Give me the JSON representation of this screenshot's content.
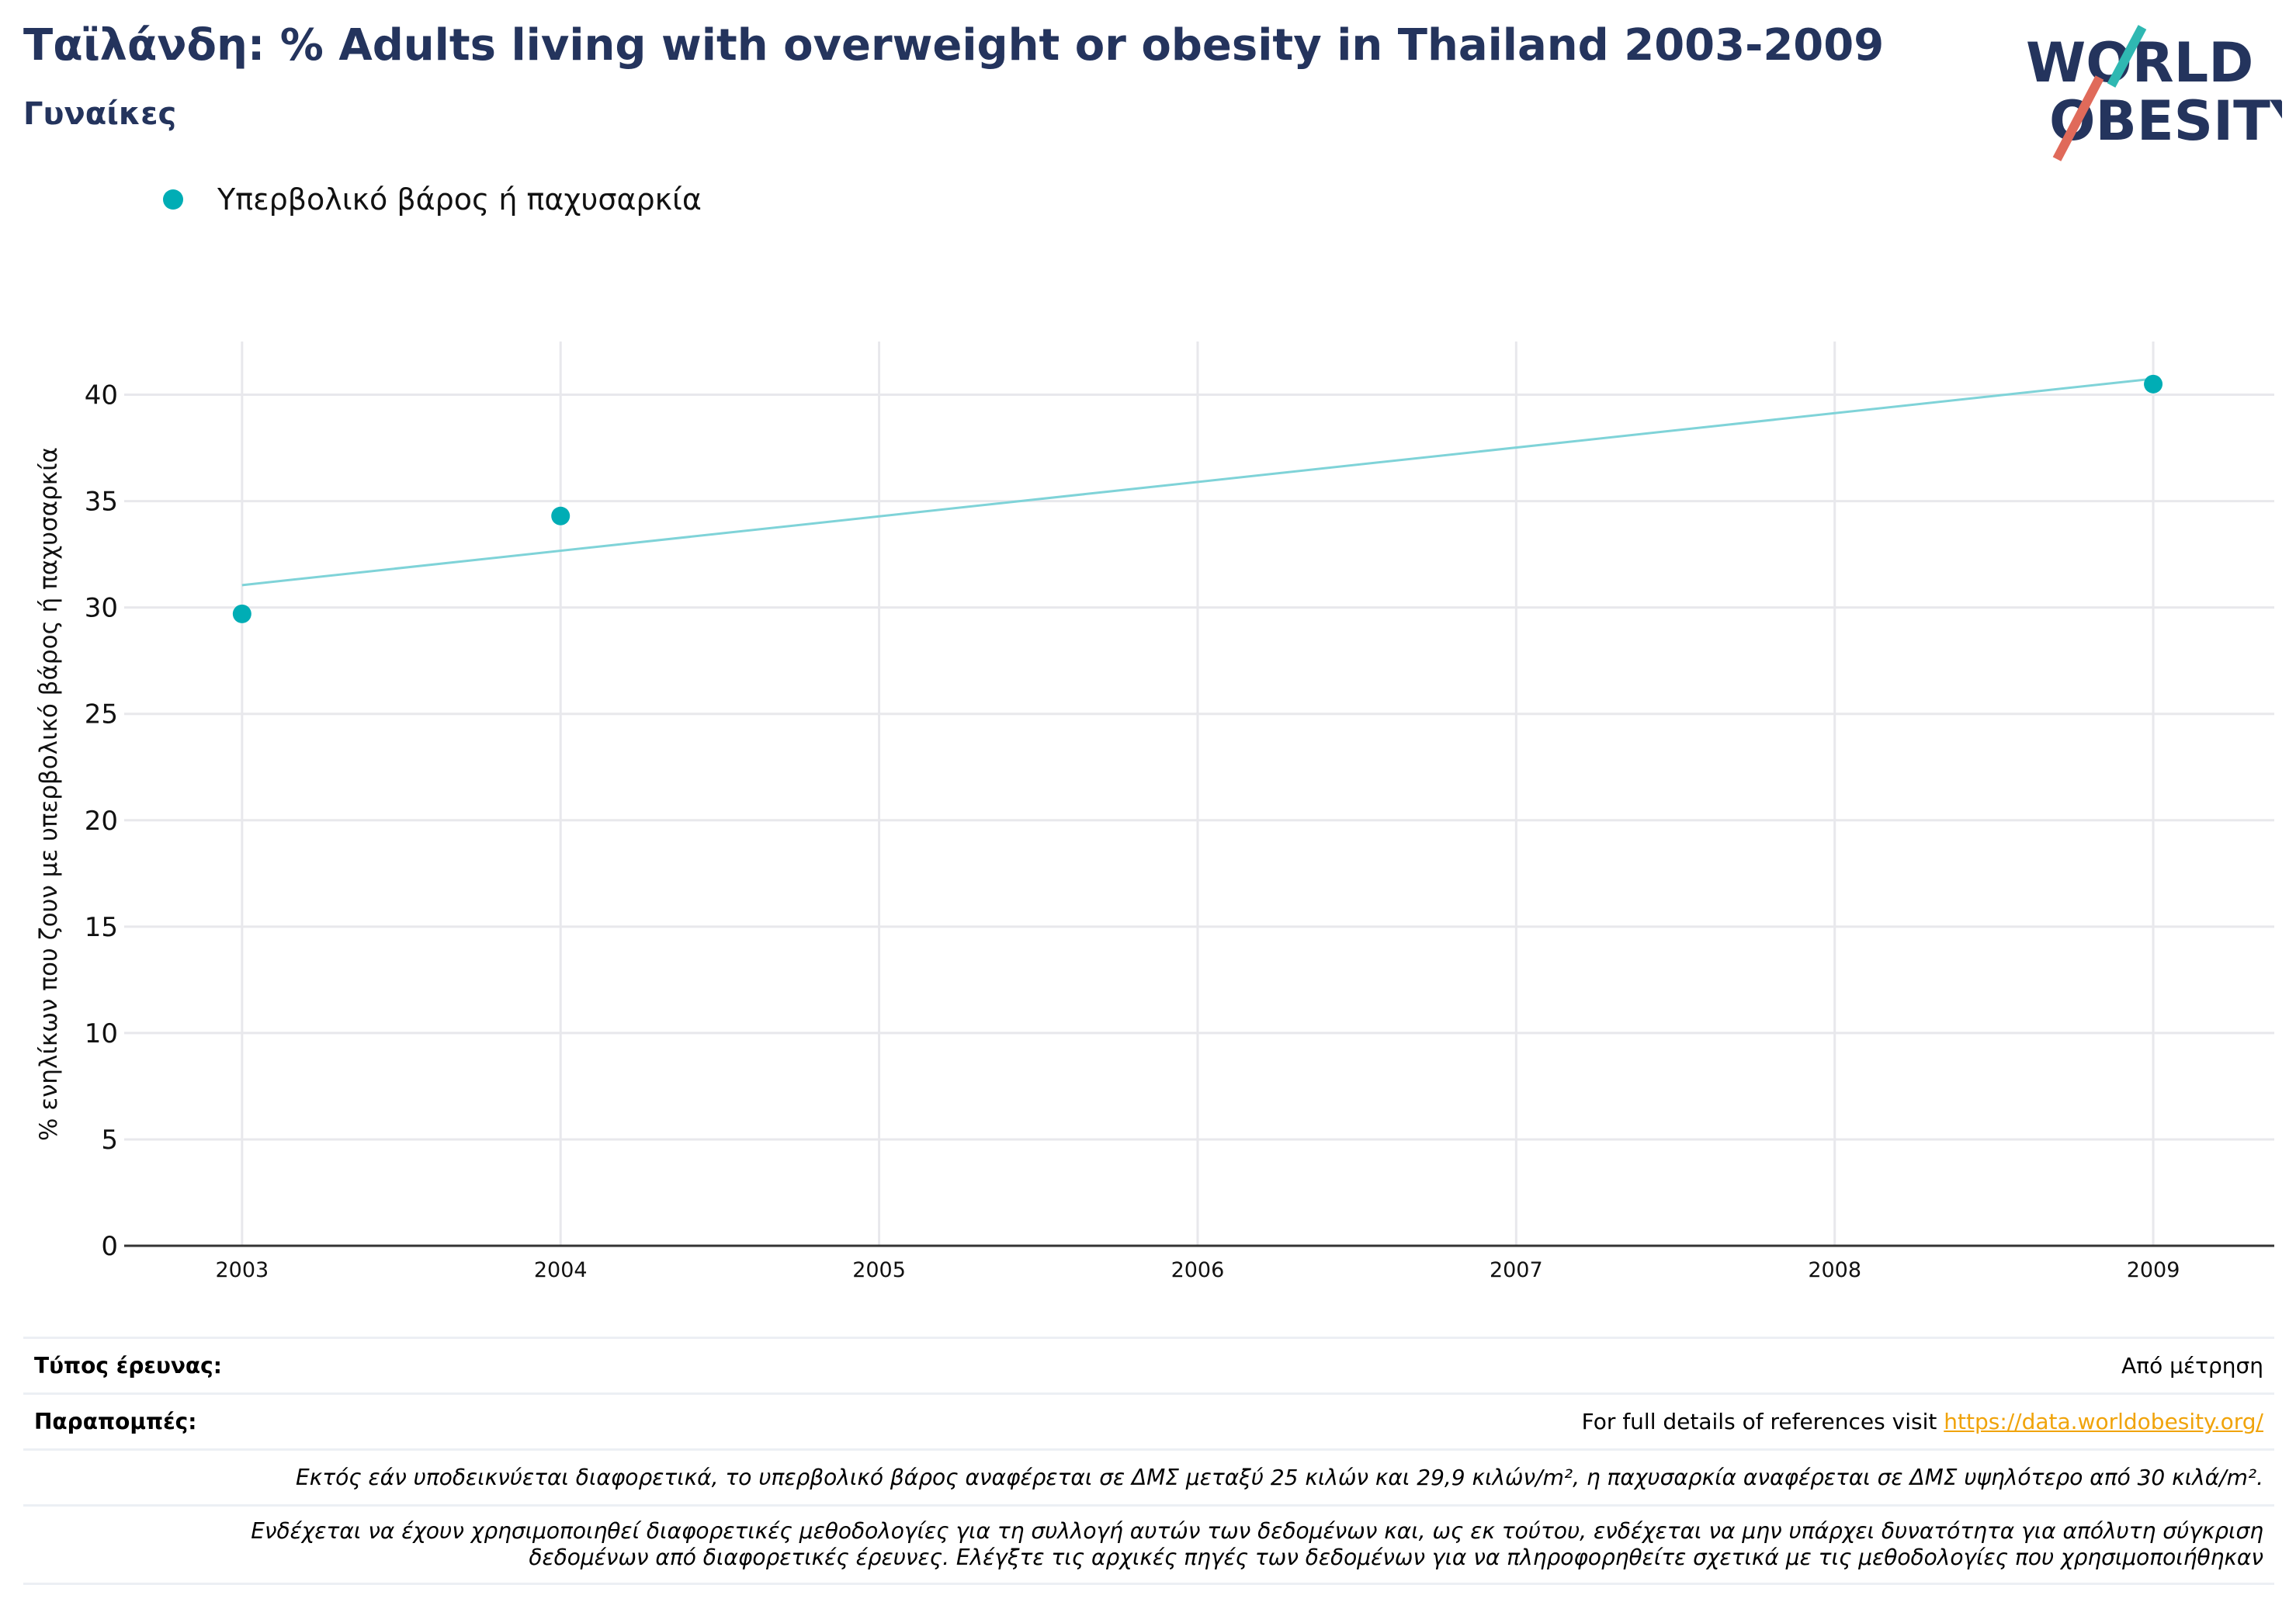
{
  "header": {
    "title": "Ταϊλάνδη: % Adults living with overweight or obesity in Thailand 2003-2009",
    "subtitle": "Γυναίκες"
  },
  "logo": {
    "line1": "WORLD",
    "line2": "OBESITY"
  },
  "legend": {
    "label": "Υπερβολικό βάρος ή παχυσαρκία"
  },
  "colors": {
    "point": "#00adb5",
    "trend": "#7fd3d8",
    "title": "#24345d",
    "link": "#f0a30a"
  },
  "chart_data": {
    "type": "scatter",
    "ylabel": "% ενηλίκων που ζουν με υπερβολικό βάρος ή παχυσαρκία",
    "xlabel": "",
    "x_ticks": [
      "2003",
      "2004",
      "2005",
      "2006",
      "2007",
      "2008",
      "2009"
    ],
    "y_ticks": [
      "0",
      "5",
      "10",
      "15",
      "20",
      "25",
      "30",
      "35",
      "40"
    ],
    "ylim": [
      0,
      42.5
    ],
    "xlim": [
      2002.63,
      2009.38
    ],
    "grid": true,
    "legend_position": "top-left",
    "series": [
      {
        "name": "Υπερβολικό βάρος ή παχυσαρκία",
        "x": [
          2003,
          2004,
          2009
        ],
        "y": [
          29.7,
          34.3,
          40.5
        ]
      }
    ],
    "trendline": {
      "x": [
        2003,
        2009
      ],
      "y": [
        31.05,
        40.75
      ]
    }
  },
  "footer": {
    "survey_label": "Τύπος έρευνας:",
    "survey_value": "Από μέτρηση",
    "refs_label": "Παραπομπές:",
    "refs_text": "For full details of references visit ",
    "refs_link": "https://data.worldobesity.org/",
    "note1": "Εκτός εάν υποδεικνύεται διαφορετικά, το υπερβολικό βάρος αναφέρεται σε ΔΜΣ μεταξύ 25 κιλών και 29,9 κιλών/m², η παχυσαρκία αναφέρεται σε ΔΜΣ υψηλότερο από 30 κιλά/m².",
    "note2_line1": "Ενδέχεται να έχουν χρησιμοποιηθεί διαφορετικές μεθοδολογίες για τη συλλογή αυτών των δεδομένων και, ως εκ τούτου, ενδέχεται να μην υπάρχει δυνατότητα για απόλυτη σύγκριση",
    "note2_line2": "δεδομένων από διαφορετικές έρευνες. Ελέγξτε τις αρχικές πηγές των δεδομένων για να πληροφορηθείτε σχετικά με τις μεθοδολογίες που χρησιμοποιήθηκαν"
  }
}
